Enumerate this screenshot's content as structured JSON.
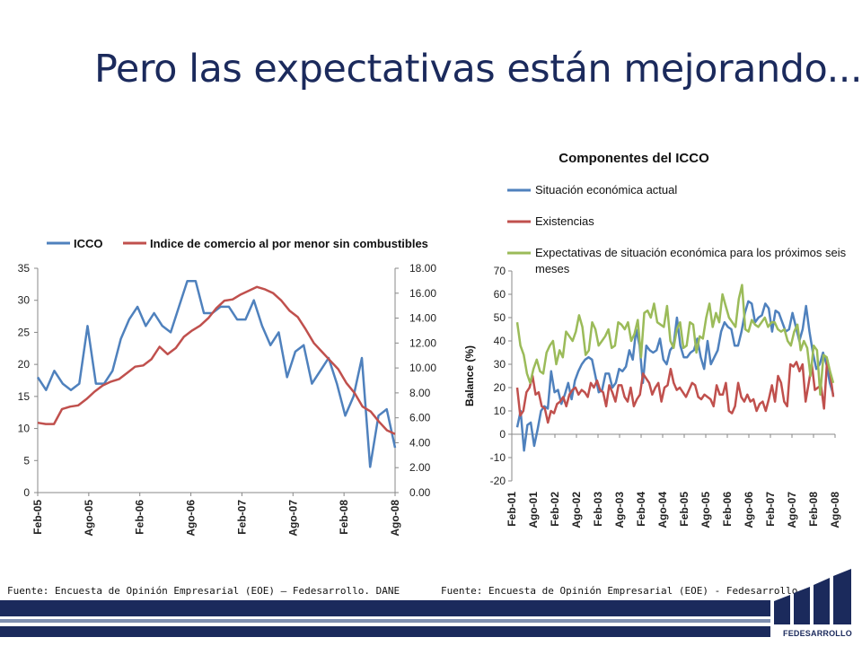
{
  "slide": {
    "title": "Pero las expectativas están mejorando...",
    "source_left": "Fuente: Encuesta de Opinión Empresarial (EOE) – Fedesarrollo. DANE",
    "source_right": "Fuente: Encuesta de Opinión Empresarial (EOE) - Fedesarrollo.",
    "logo_text": "FEDESARROLLO"
  },
  "colors": {
    "title": "#1b2a5c",
    "blue": "#4f81bd",
    "red": "#c0504d",
    "green": "#9bbb59",
    "axis": "#888888",
    "band": "#1b2a5c"
  },
  "chart_data": [
    {
      "type": "line",
      "title": "",
      "x_tick_labels": [
        "Feb-05",
        "Ago-05",
        "Feb-06",
        "Ago-06",
        "Feb-07",
        "Ago-07",
        "Feb-08",
        "Ago-08"
      ],
      "ylim_left": [
        0,
        35
      ],
      "yticks_left": [
        "0",
        "5",
        "10",
        "15",
        "20",
        "25",
        "30",
        "35"
      ],
      "ylim_right": [
        0,
        18
      ],
      "yticks_right": [
        "0.00",
        "2.00",
        "4.00",
        "6.00",
        "8.00",
        "10.00",
        "12.00",
        "14.00",
        "16.00",
        "18.00"
      ],
      "legend_position": "top",
      "series": [
        {
          "name": "ICCO",
          "axis": "left",
          "color": "#4f81bd",
          "values": [
            18,
            16,
            19,
            17,
            16,
            17,
            26,
            17,
            17,
            19,
            24,
            27,
            29,
            26,
            28,
            26,
            25,
            29,
            33,
            33,
            28,
            28,
            29,
            29,
            27,
            27,
            30,
            26,
            23,
            25,
            18,
            22,
            23,
            17,
            19,
            21,
            17,
            12,
            15,
            21,
            4,
            12,
            13,
            7
          ]
        },
        {
          "name": "Indice de comercio al por menor sin combustibles",
          "axis": "right",
          "color": "#c0504d",
          "values": [
            5.6,
            5.5,
            5.5,
            6.7,
            6.9,
            7.0,
            7.5,
            8.1,
            8.6,
            8.9,
            9.1,
            9.6,
            10.1,
            10.2,
            10.7,
            11.7,
            11.1,
            11.6,
            12.5,
            13.0,
            13.4,
            14.0,
            14.8,
            15.4,
            15.5,
            15.9,
            16.2,
            16.5,
            16.3,
            16.0,
            15.4,
            14.6,
            14.1,
            13.1,
            12.0,
            11.3,
            10.6,
            9.9,
            8.8,
            8.0,
            6.9,
            6.5,
            5.7,
            5.0,
            4.7
          ]
        }
      ]
    },
    {
      "type": "line",
      "title": "Componentes del ICCO",
      "ylabel": "Balance (%)",
      "x_tick_labels": [
        "Feb-01",
        "Ago-01",
        "Feb-02",
        "Ago-02",
        "Feb-03",
        "Ago-03",
        "Feb-04",
        "Ago-04",
        "Feb-05",
        "Ago-05",
        "Feb-06",
        "Ago-06",
        "Feb-07",
        "Ago-07",
        "Feb-08",
        "Ago-08"
      ],
      "ylim": [
        -20,
        70
      ],
      "yticks": [
        "-20",
        "-10",
        "0",
        "10",
        "20",
        "30",
        "40",
        "50",
        "60",
        "70"
      ],
      "legend_position": "top",
      "series": [
        {
          "name": "Situación económica actual",
          "color": "#4f81bd",
          "values": [
            3,
            10,
            -7,
            4,
            5,
            -5,
            2,
            10,
            12,
            11,
            27,
            18,
            19,
            13,
            17,
            22,
            15,
            23,
            27,
            30,
            32,
            33,
            32,
            25,
            18,
            19,
            26,
            26,
            20,
            22,
            28,
            27,
            29,
            36,
            32,
            45,
            38,
            22,
            38,
            36,
            35,
            36,
            41,
            32,
            30,
            36,
            38,
            50,
            38,
            33,
            33,
            35,
            36,
            41,
            33,
            28,
            40,
            30,
            33,
            36,
            44,
            48,
            46,
            45,
            38,
            38,
            44,
            52,
            57,
            56,
            48,
            50,
            51,
            56,
            54,
            44,
            53,
            52,
            48,
            44,
            45,
            52,
            46,
            40,
            45,
            55,
            44,
            35,
            28,
            30,
            35,
            30,
            22,
            17
          ]
        },
        {
          "name": "Existencias",
          "color": "#c0504d",
          "values": [
            20,
            8,
            10,
            18,
            20,
            25,
            17,
            18,
            12,
            11,
            5,
            10,
            9,
            13,
            14,
            16,
            12,
            17,
            19,
            20,
            17,
            19,
            18,
            16,
            22,
            20,
            23,
            19,
            18,
            12,
            21,
            18,
            14,
            21,
            21,
            16,
            14,
            20,
            12,
            15,
            17,
            26,
            24,
            22,
            17,
            20,
            22,
            14,
            20,
            21,
            28,
            22,
            19,
            20,
            18,
            16,
            19,
            22,
            21,
            16,
            15,
            17,
            16,
            15,
            12,
            21,
            17,
            17,
            22,
            10,
            9,
            12,
            22,
            16,
            14,
            17,
            14,
            15,
            10,
            13,
            14,
            10,
            15,
            21,
            14,
            25,
            22,
            14,
            12,
            30,
            29,
            31,
            27,
            30,
            14,
            22,
            30,
            19,
            20,
            21,
            11,
            32,
            26,
            16
          ]
        },
        {
          "name": "Expectativas de situación económica para los próximos seis meses",
          "color": "#9bbb59",
          "values": [
            48,
            38,
            34,
            26,
            22,
            28,
            32,
            27,
            26,
            35,
            38,
            40,
            30,
            36,
            33,
            44,
            42,
            40,
            44,
            51,
            46,
            34,
            36,
            48,
            45,
            38,
            40,
            42,
            45,
            37,
            38,
            48,
            47,
            45,
            48,
            40,
            43,
            49,
            33,
            52,
            53,
            50,
            56,
            48,
            47,
            46,
            55,
            40,
            37,
            45,
            48,
            37,
            38,
            48,
            47,
            35,
            42,
            41,
            50,
            56,
            46,
            52,
            48,
            60,
            55,
            50,
            48,
            46,
            58,
            64,
            45,
            44,
            49,
            47,
            46,
            48,
            50,
            46,
            48,
            48,
            45,
            44,
            45,
            40,
            38,
            44,
            47,
            36,
            40,
            37,
            25,
            38,
            36,
            17,
            34,
            33,
            27,
            22
          ]
        }
      ]
    }
  ]
}
